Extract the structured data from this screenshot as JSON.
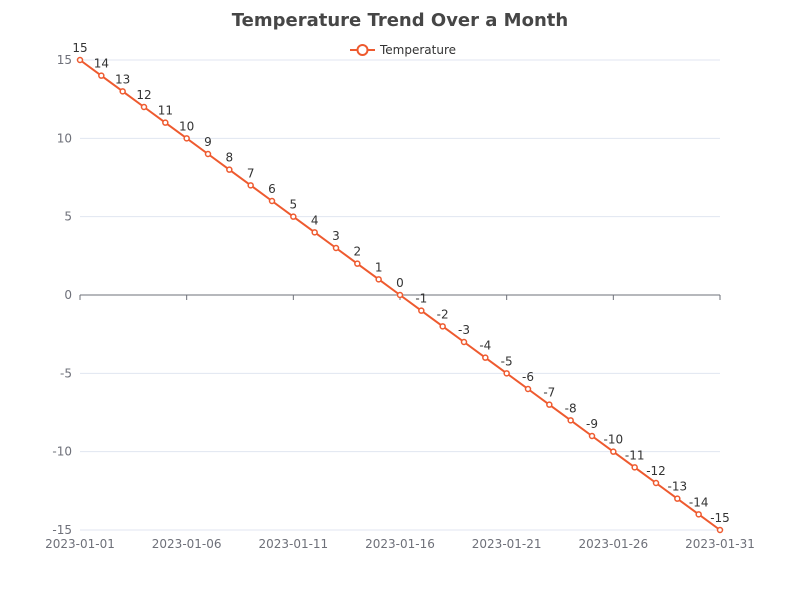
{
  "chart_data": {
    "type": "line",
    "title": "Temperature Trend Over a Month",
    "legend": {
      "position": "top-center",
      "entries": [
        "Temperature"
      ]
    },
    "x": [
      "2023-01-01",
      "2023-01-02",
      "2023-01-03",
      "2023-01-04",
      "2023-01-05",
      "2023-01-06",
      "2023-01-07",
      "2023-01-08",
      "2023-01-09",
      "2023-01-10",
      "2023-01-11",
      "2023-01-12",
      "2023-01-13",
      "2023-01-14",
      "2023-01-15",
      "2023-01-16",
      "2023-01-17",
      "2023-01-18",
      "2023-01-19",
      "2023-01-20",
      "2023-01-21",
      "2023-01-22",
      "2023-01-23",
      "2023-01-24",
      "2023-01-25",
      "2023-01-26",
      "2023-01-27",
      "2023-01-28",
      "2023-01-29",
      "2023-01-30",
      "2023-01-31"
    ],
    "x_tick_labels": [
      "2023-01-01",
      "2023-01-06",
      "2023-01-11",
      "2023-01-16",
      "2023-01-21",
      "2023-01-26",
      "2023-01-31"
    ],
    "series": [
      {
        "name": "Temperature",
        "color": "#ee5a2f",
        "values": [
          15,
          14,
          13,
          12,
          11,
          10,
          9,
          8,
          7,
          6,
          5,
          4,
          3,
          2,
          1,
          0,
          -1,
          -2,
          -3,
          -4,
          -5,
          -6,
          -7,
          -8,
          -9,
          -10,
          -11,
          -12,
          -13,
          -14,
          -15
        ]
      }
    ],
    "ylim": [
      -15,
      15
    ],
    "y_ticks": [
      15,
      10,
      5,
      0,
      -5,
      -10,
      -15
    ],
    "xlabel": "",
    "ylabel": "",
    "grid": true,
    "data_labels": true
  }
}
